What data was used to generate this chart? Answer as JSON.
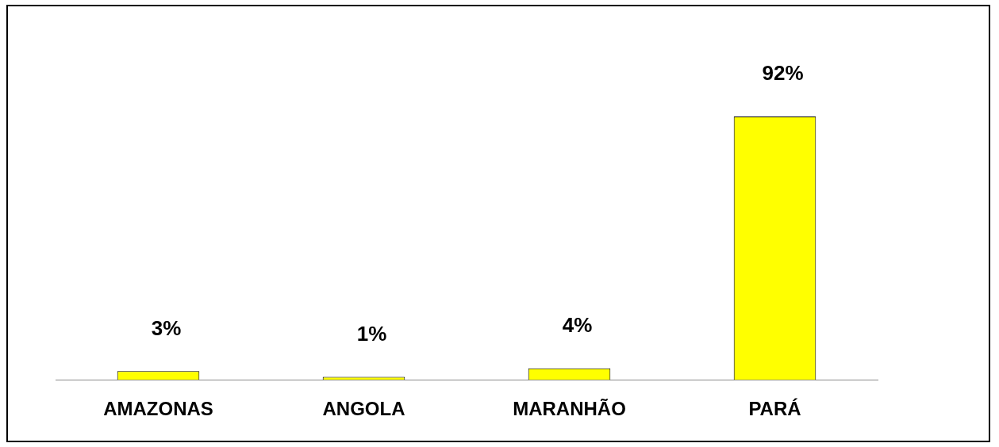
{
  "chart_data": {
    "type": "bar",
    "categories": [
      "AMAZONAS",
      "ANGOLA",
      "MARANHÃO",
      "PARÁ"
    ],
    "values": [
      3,
      1,
      4,
      92
    ],
    "value_labels": [
      "3%",
      "1%",
      "4%",
      "92%"
    ],
    "color": "#ffff00",
    "relative": false,
    "grid": false
  }
}
